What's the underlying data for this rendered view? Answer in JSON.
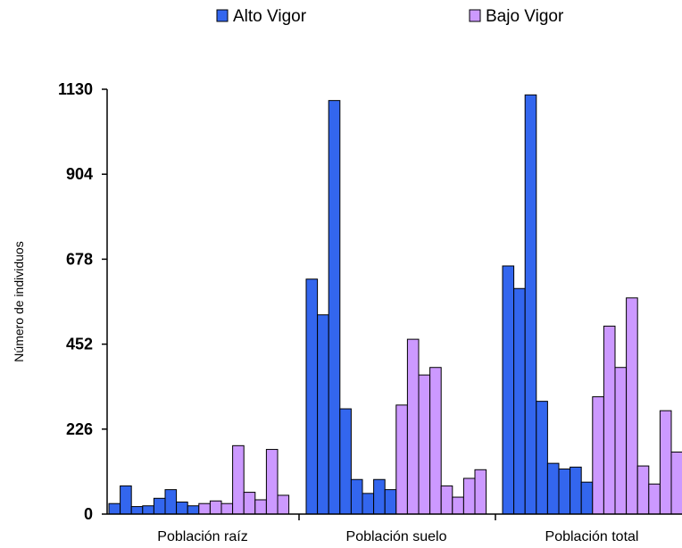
{
  "chart_data": {
    "type": "bar",
    "ylabel": "Número de individuos",
    "ylim": [
      0,
      1130
    ],
    "yticks": [
      0,
      226,
      452,
      678,
      904,
      1130
    ],
    "legend_placement": "top-center",
    "categories": [
      "Población raíz",
      "Población suelo",
      "Población total"
    ],
    "series": [
      {
        "name": "Alto Vigor",
        "color": "#3366ee",
        "groups": [
          [
            28,
            75,
            20,
            22,
            42,
            65,
            32,
            22
          ],
          [
            625,
            530,
            1100,
            280,
            92,
            55,
            92,
            65
          ],
          [
            660,
            600,
            1115,
            300,
            135,
            120,
            125,
            85
          ]
        ]
      },
      {
        "name": "Bajo Vigor",
        "color": "#cc99ff",
        "groups": [
          [
            28,
            35,
            28,
            182,
            58,
            38,
            172,
            50
          ],
          [
            290,
            465,
            370,
            390,
            75,
            45,
            95,
            118
          ],
          [
            312,
            500,
            390,
            575,
            128,
            80,
            275,
            165
          ]
        ]
      }
    ]
  }
}
